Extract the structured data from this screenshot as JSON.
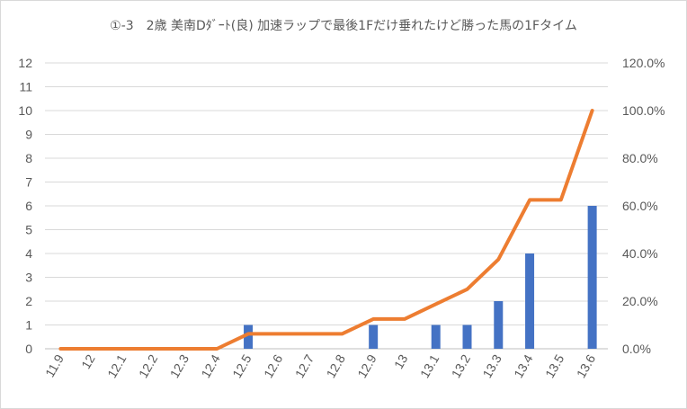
{
  "chart_data": {
    "type": "bar+line",
    "title": "①-3　2歳 美南Dﾀﾞｰﾄ(良) 加速ラップで最後1Fだけ垂れたけど勝った馬の1Fタイム",
    "categories": [
      "11.9",
      "12",
      "12.1",
      "12.2",
      "12.3",
      "12.4",
      "12.5",
      "12.6",
      "12.7",
      "12.8",
      "12.9",
      "13",
      "13.1",
      "13.2",
      "13.3",
      "13.4",
      "13.5",
      "13.6"
    ],
    "series": [
      {
        "type": "bar",
        "axis": "left",
        "color": "#4472C4",
        "values": [
          0,
          0,
          0,
          0,
          0,
          0,
          1,
          0,
          0,
          0,
          1,
          0,
          1,
          1,
          2,
          4,
          0,
          6
        ]
      },
      {
        "type": "line",
        "axis": "right",
        "color": "#ED7D31",
        "values": [
          0,
          0,
          0,
          0,
          0,
          0,
          6.25,
          6.25,
          6.25,
          6.25,
          12.5,
          12.5,
          18.75,
          25,
          37.5,
          62.5,
          62.5,
          100
        ]
      }
    ],
    "y_left": {
      "min": 0,
      "max": 12,
      "ticks": [
        "0",
        "1",
        "2",
        "3",
        "4",
        "5",
        "6",
        "7",
        "8",
        "9",
        "10",
        "11",
        "12"
      ]
    },
    "y_right": {
      "min": 0,
      "max": 120,
      "ticks": [
        "0.0%",
        "20.0%",
        "40.0%",
        "60.0%",
        "80.0%",
        "100.0%",
        "120.0%"
      ]
    },
    "grid": true
  }
}
